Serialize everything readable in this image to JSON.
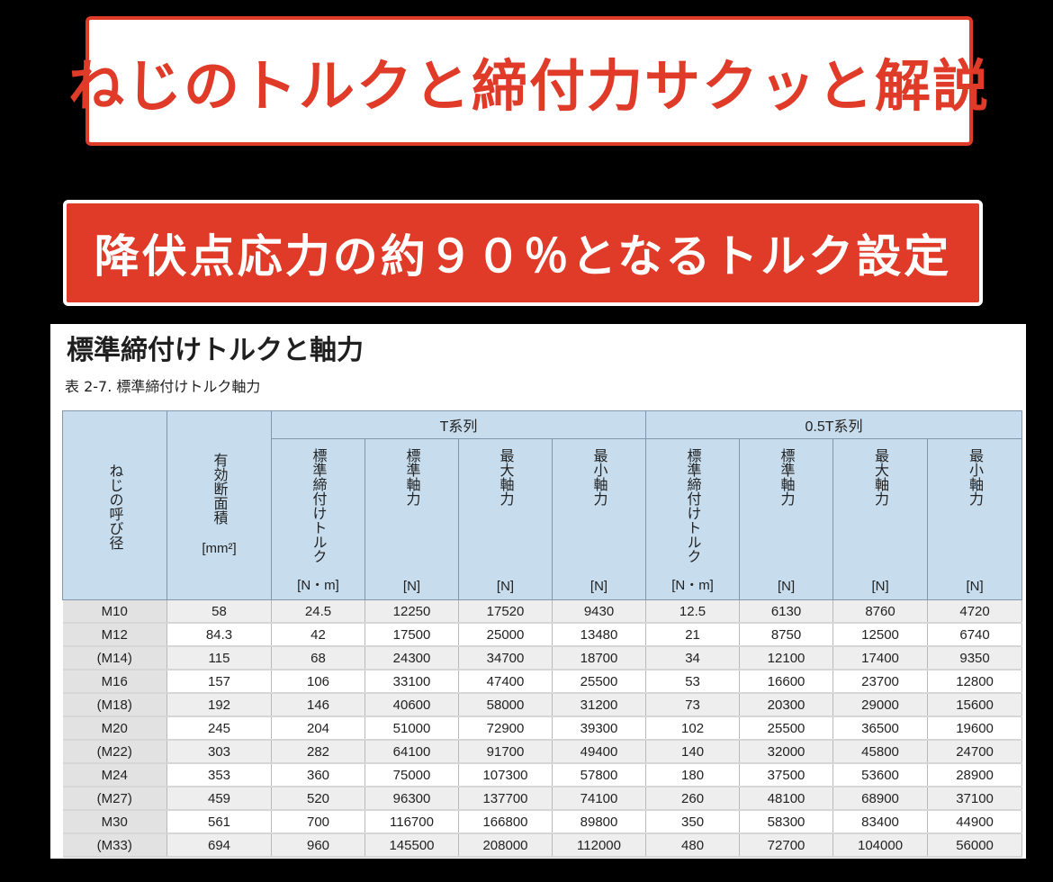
{
  "title": "ねじのトルクと締付力サクッと解説",
  "subtitle": "降伏点応力の約９０％となるトルク設定",
  "document": {
    "heading": "標準締付けトルクと軸力",
    "caption": "表 2-7. 標準締付けトルク軸力",
    "header": {
      "size_label": "ねじの呼び径",
      "area_label": "有効断面積",
      "area_unit": "[mm²]",
      "group_t": "T系列",
      "group_05t": "0.5T系列",
      "t_cols": [
        {
          "label": "標準締付けトルク",
          "unit": "[N・m]"
        },
        {
          "label": "標準軸力",
          "unit": "[N]"
        },
        {
          "label": "最大軸力",
          "unit": "[N]"
        },
        {
          "label": "最小軸力",
          "unit": "[N]"
        }
      ],
      "h_cols": [
        {
          "label": "標準締付けトルク",
          "unit": "[N・m]"
        },
        {
          "label": "標準軸力",
          "unit": "[N]"
        },
        {
          "label": "最大軸力",
          "unit": "[N]"
        },
        {
          "label": "最小軸力",
          "unit": "[N]"
        }
      ]
    },
    "rows": [
      [
        "M10",
        "58",
        "24.5",
        "12250",
        "17520",
        "9430",
        "12.5",
        "6130",
        "8760",
        "4720"
      ],
      [
        "M12",
        "84.3",
        "42",
        "17500",
        "25000",
        "13480",
        "21",
        "8750",
        "12500",
        "6740"
      ],
      [
        "(M14)",
        "115",
        "68",
        "24300",
        "34700",
        "18700",
        "34",
        "12100",
        "17400",
        "9350"
      ],
      [
        "M16",
        "157",
        "106",
        "33100",
        "47400",
        "25500",
        "53",
        "16600",
        "23700",
        "12800"
      ],
      [
        "(M18)",
        "192",
        "146",
        "40600",
        "58000",
        "31200",
        "73",
        "20300",
        "29000",
        "15600"
      ],
      [
        "M20",
        "245",
        "204",
        "51000",
        "72900",
        "39300",
        "102",
        "25500",
        "36500",
        "19600"
      ],
      [
        "(M22)",
        "303",
        "282",
        "64100",
        "91700",
        "49400",
        "140",
        "32000",
        "45800",
        "24700"
      ],
      [
        "M24",
        "353",
        "360",
        "75000",
        "107300",
        "57800",
        "180",
        "37500",
        "53600",
        "28900"
      ],
      [
        "(M27)",
        "459",
        "520",
        "96300",
        "137700",
        "74100",
        "260",
        "48100",
        "68900",
        "37100"
      ],
      [
        "M30",
        "561",
        "700",
        "116700",
        "166800",
        "89800",
        "350",
        "58300",
        "83400",
        "44900"
      ],
      [
        "(M33)",
        "694",
        "960",
        "145500",
        "208000",
        "112000",
        "480",
        "72700",
        "104000",
        "56000"
      ]
    ]
  },
  "colors": {
    "accent_red": "#e03a28",
    "header_blue": "#c7dced",
    "background": "#000000"
  }
}
